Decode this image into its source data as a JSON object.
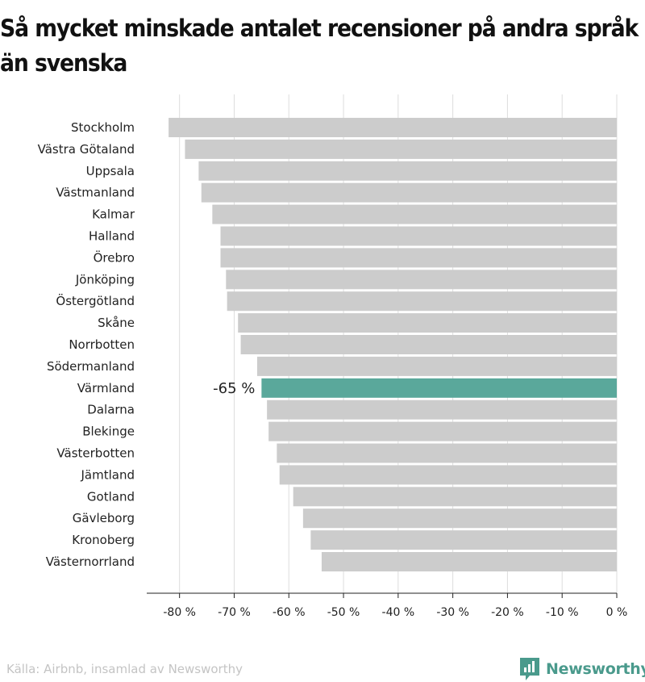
{
  "title": "Så mycket minskade antalet recensioner på andra språk än svenska",
  "source": "Källa: Airbnb, insamlad av Newsworthy",
  "brand": "Newsworthy",
  "colors": {
    "bar": "#cccccc",
    "highlight": "#5aa89b",
    "grid": "#dddddd",
    "axis": "#222222",
    "brand": "#4a9a8c"
  },
  "chart_data": {
    "type": "bar",
    "orientation": "horizontal",
    "categories": [
      "Stockholm",
      "Västra Götaland",
      "Uppsala",
      "Västmanland",
      "Kalmar",
      "Halland",
      "Örebro",
      "Jönköping",
      "Östergötland",
      "Skåne",
      "Norrbotten",
      "Södermanland",
      "Värmland",
      "Dalarna",
      "Blekinge",
      "Västerbotten",
      "Jämtland",
      "Gotland",
      "Gävleborg",
      "Kronoberg",
      "Västernorrland"
    ],
    "values": [
      -82,
      -79,
      -76.5,
      -76,
      -74,
      -72.5,
      -72.5,
      -71.5,
      -71.3,
      -69.3,
      -68.8,
      -65.8,
      -65,
      -64,
      -63.7,
      -62.2,
      -61.7,
      -59.2,
      -57.4,
      -56,
      -54
    ],
    "highlight_category": "Värmland",
    "highlight_label": "-65 %",
    "xlim": [
      -86,
      0
    ],
    "xticks": [
      -80,
      -70,
      -60,
      -50,
      -40,
      -30,
      -20,
      -10,
      0
    ],
    "xtick_labels": [
      "-80 %",
      "-70 %",
      "-60 %",
      "-50 %",
      "-40 %",
      "-30 %",
      "-20 %",
      "-10 %",
      "0 %"
    ],
    "grid": true
  }
}
